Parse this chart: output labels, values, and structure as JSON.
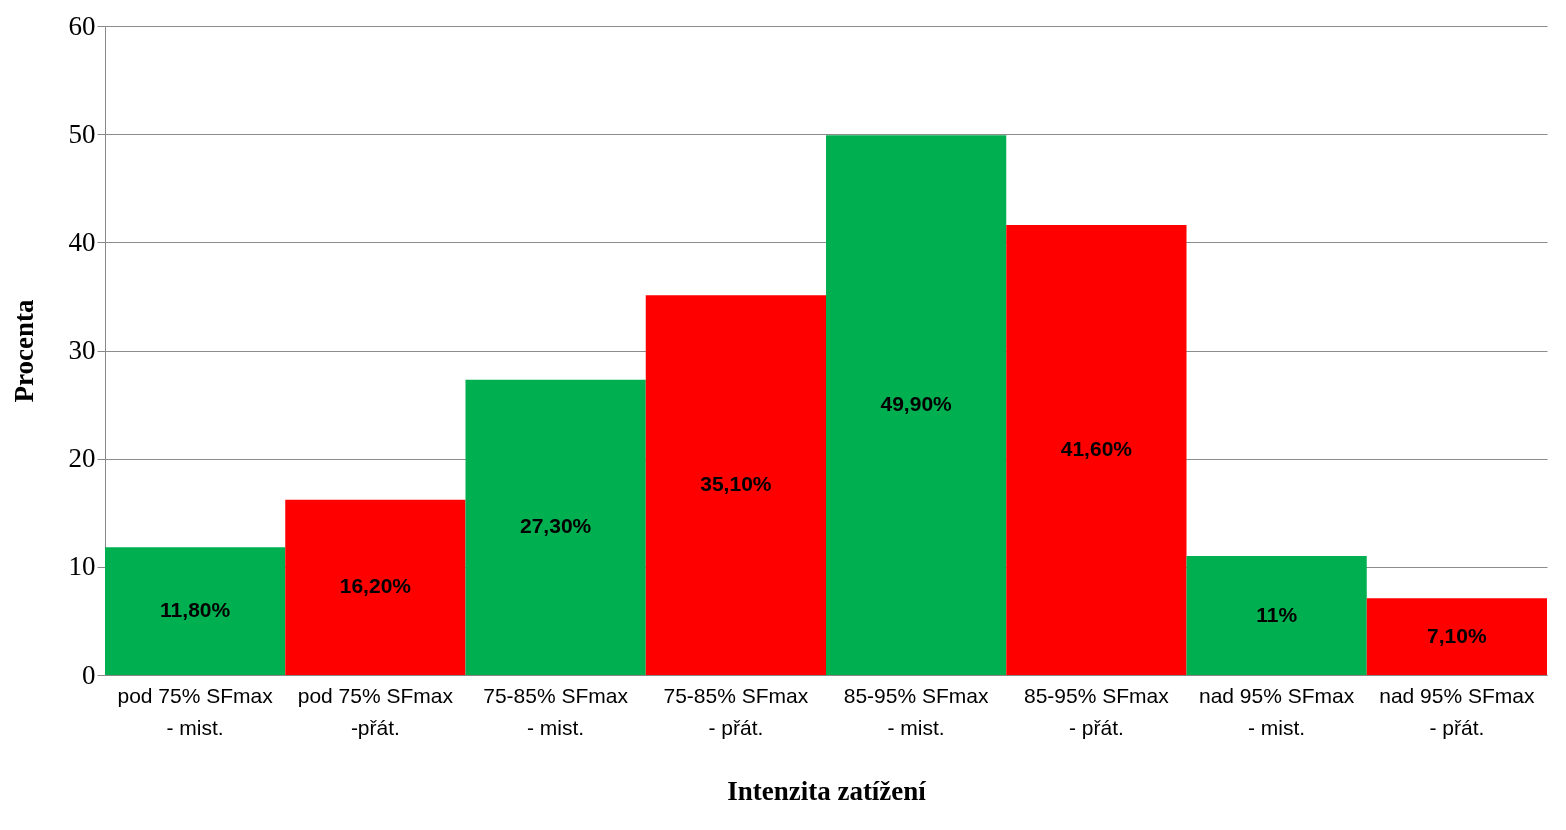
{
  "chart_data": {
    "type": "bar",
    "xlabel": "Intenzita zatížení",
    "ylabel": "Procenta",
    "categories": [
      "pod 75% SFmax\n- mist.",
      "pod 75% SFmax\n-přát.",
      "75-85% SFmax\n- mist.",
      "75-85% SFmax\n- přát.",
      "85-95% SFmax\n- mist.",
      "85-95% SFmax\n- přát.",
      "nad 95% SFmax\n- mist.",
      "nad 95% SFmax\n- přát."
    ],
    "values": [
      11.8,
      16.2,
      27.3,
      35.1,
      49.9,
      41.6,
      11,
      7.1
    ],
    "value_labels": [
      "11,80%",
      "16,20%",
      "27,30%",
      "35,10%",
      "49,90%",
      "41,60%",
      "11%",
      "7,10%"
    ],
    "colors": [
      "#00b050",
      "#ff0000",
      "#00b050",
      "#ff0000",
      "#00b050",
      "#ff0000",
      "#00b050",
      "#ff0000"
    ],
    "ylim": [
      0,
      60
    ],
    "yticks": [
      0,
      10,
      20,
      30,
      40,
      50,
      60
    ],
    "grid": "y"
  }
}
